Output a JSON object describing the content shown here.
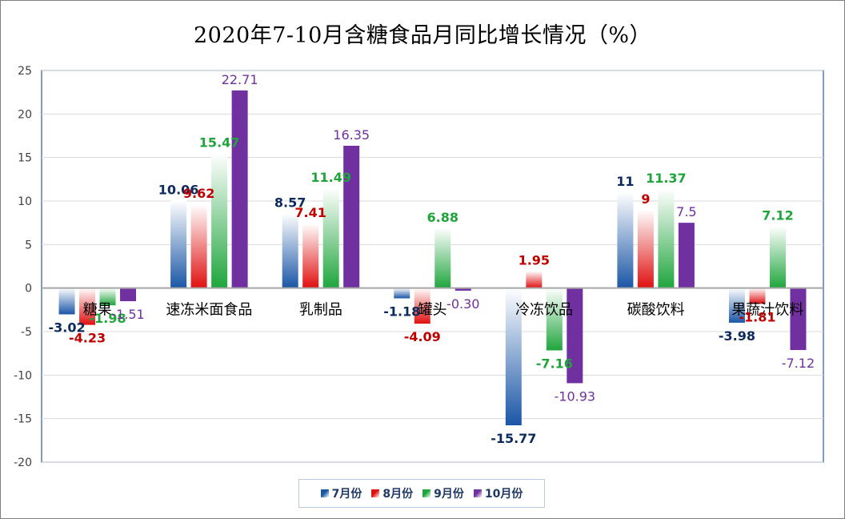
{
  "title": "2020年7-10月含糖食品月同比增长情况（%）",
  "chart_data": {
    "type": "bar",
    "title": "2020年7-10月含糖食品月同比增长情况（%）",
    "categories": [
      "糖果",
      "速冻米面食品",
      "乳制品",
      "罐头",
      "冷冻饮品",
      "碳酸饮料",
      "果蔬汁饮料"
    ],
    "series": [
      {
        "name": "7月份",
        "color": "#1a56a6",
        "values": [
          -3.02,
          10.06,
          8.57,
          -1.18,
          -15.77,
          11,
          -3.98
        ],
        "labels": [
          "-3.02",
          "10.06",
          "8.57",
          "-1.18",
          "-15.77",
          "11",
          "-3.98"
        ]
      },
      {
        "name": "8月份",
        "color": "#e01010",
        "values": [
          -4.23,
          9.62,
          7.41,
          -4.09,
          1.95,
          9,
          -1.81
        ],
        "labels": [
          "-4.23",
          "9.62",
          "7.41",
          "-4.09",
          "1.95",
          "9",
          "-1.81"
        ]
      },
      {
        "name": "9月份",
        "color": "#1fa53c",
        "values": [
          -1.98,
          15.47,
          11.49,
          6.88,
          -7.16,
          11.37,
          7.12
        ],
        "labels": [
          "-1.98",
          "15.47",
          "11.49",
          "6.88",
          "-7.16",
          "11.37",
          "7.12"
        ]
      },
      {
        "name": "10月份",
        "color": "#7030a0",
        "values": [
          -1.51,
          22.71,
          16.35,
          -0.3,
          -10.93,
          7.5,
          -7.12
        ],
        "labels": [
          "-1.51",
          "22.71",
          "16.35",
          "-0.30",
          "-10.93",
          "7.5",
          "-7.12"
        ]
      }
    ],
    "label_colors": [
      "#0d2a5c",
      "#c00000",
      "#1fa53c",
      "#7030a0"
    ],
    "yticks": [
      "25",
      "20",
      "15",
      "10",
      "5",
      "0",
      "-5",
      "-10",
      "-15",
      "-20"
    ],
    "ylim": [
      -20,
      25
    ],
    "grid": true,
    "legend_position": "bottom"
  }
}
